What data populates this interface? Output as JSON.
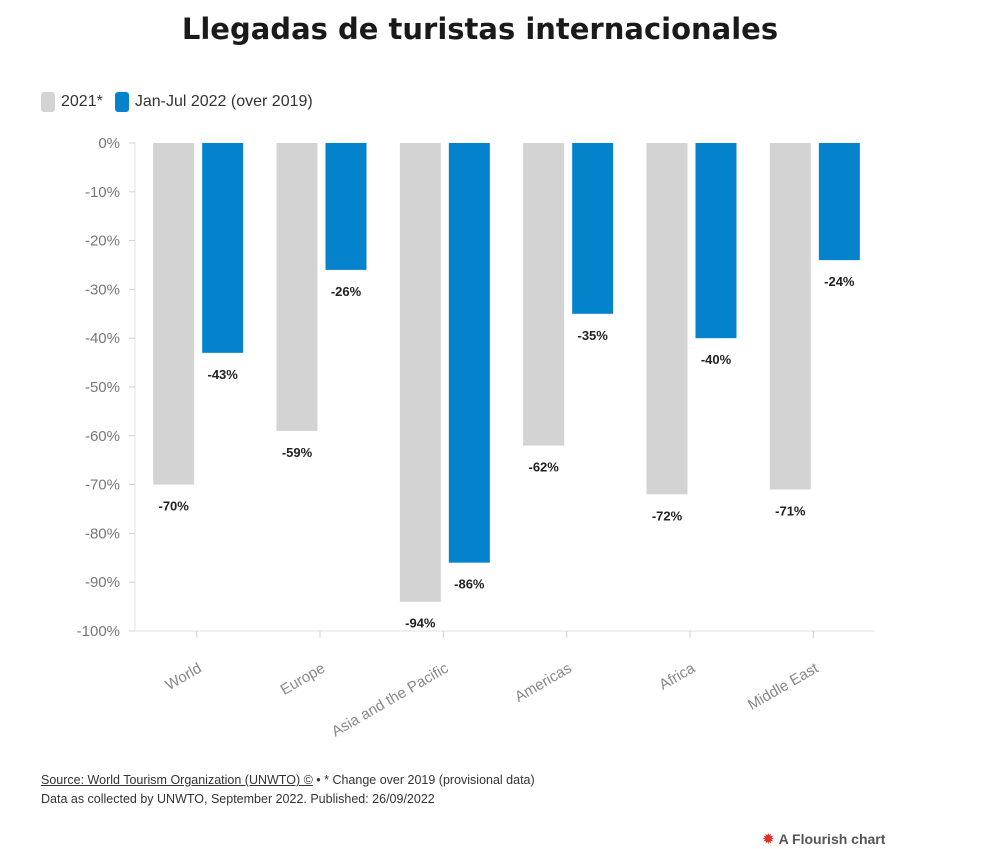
{
  "chart_data": {
    "type": "bar",
    "title": "Llegadas de turistas internacionales",
    "categories": [
      "World",
      "Europe",
      "Asia and the Pacific",
      "Americas",
      "Africa",
      "Middle East"
    ],
    "series": [
      {
        "name": "2021*",
        "color": "#d3d3d3",
        "values": [
          -70,
          -59,
          -94,
          -62,
          -72,
          -71
        ]
      },
      {
        "name": "Jan-Jul 2022 (over 2019)",
        "color": "#0482cc",
        "values": [
          -43,
          -26,
          -86,
          -35,
          -40,
          -24
        ]
      }
    ],
    "data_labels": [
      [
        "-70%",
        "-59%",
        "-94%",
        "-62%",
        "-72%",
        "-71%"
      ],
      [
        "-43%",
        "-26%",
        "-86%",
        "-35%",
        "-40%",
        "-24%"
      ]
    ],
    "y_ticks": [
      0,
      -10,
      -20,
      -30,
      -40,
      -50,
      -60,
      -70,
      -80,
      -90,
      -100
    ],
    "y_tick_labels": [
      "0%",
      "-10%",
      "-20%",
      "-30%",
      "-40%",
      "-50%",
      "-60%",
      "-70%",
      "-80%",
      "-90%",
      "-100%"
    ],
    "ylim": [
      -100,
      0
    ],
    "legend_position": "top-left",
    "grid": false
  },
  "footer": {
    "source_link": "Source: World Tourism Organization (UNWTO) ©",
    "source_note": " • * Change over 2019 (provisional data)",
    "line2": "Data as collected by UNWTO, September 2022. Published: 26/09/2022"
  },
  "branding": {
    "icon": "flourish-burst-icon",
    "text": "A Flourish chart"
  }
}
